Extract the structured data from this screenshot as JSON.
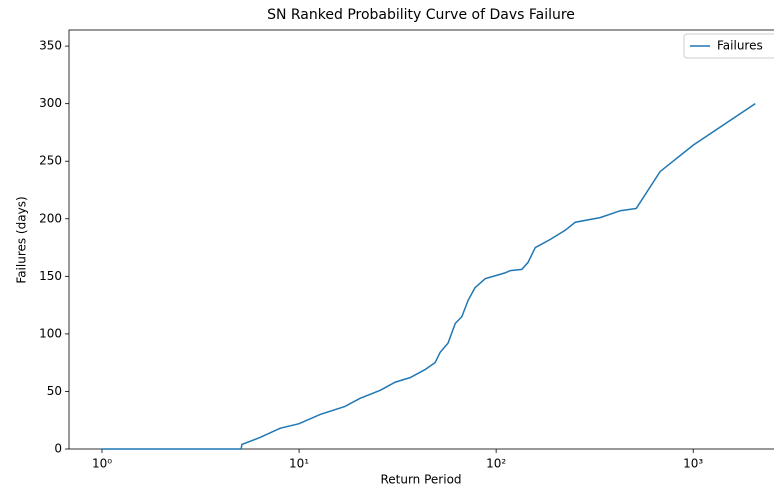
{
  "chart_data": {
    "type": "line",
    "title": "SN Ranked Probability Curve of Davs Failure",
    "x_label": "Return Period",
    "y_label": "Failures (days)",
    "x_scale": "log",
    "x": [
      1,
      5.08,
      5.13,
      6.34,
      8.0,
      10,
      12.8,
      17.1,
      20.4,
      25.8,
      30.7,
      36.6,
      43.6,
      49,
      52,
      57,
      62,
      67,
      72,
      78,
      88,
      111,
      118,
      135,
      145,
      158,
      188,
      224,
      252,
      337,
      427,
      514,
      679,
      1000,
      2065
    ],
    "series": [
      {
        "name": "Failures",
        "color": "#1f77b4",
        "values": [
          0,
          0,
          4,
          10,
          18,
          22,
          30,
          37,
          44,
          51,
          58,
          62,
          69,
          75,
          84,
          92,
          109,
          115,
          129,
          140,
          148,
          153,
          155,
          156,
          162,
          175,
          182,
          190,
          197,
          201,
          207,
          209,
          241,
          264,
          300
        ]
      }
    ],
    "xlim": [
      0.68,
      2570
    ],
    "ylim": [
      0,
      364
    ],
    "xticks": [
      {
        "value": 1,
        "label": "10⁰"
      },
      {
        "value": 10,
        "label": "10¹"
      },
      {
        "value": 100,
        "label": "10²"
      },
      {
        "value": 1000,
        "label": "10³"
      }
    ],
    "yticks": [
      0,
      50,
      100,
      150,
      200,
      250,
      300,
      350
    ],
    "legend": "upper right"
  }
}
